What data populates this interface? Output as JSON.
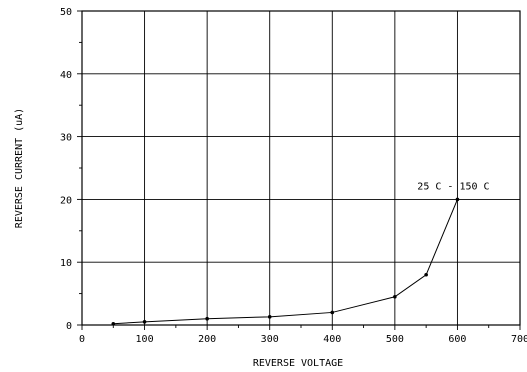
{
  "chart_data": {
    "type": "line",
    "title": "",
    "xlabel": "REVERSE VOLTAGE",
    "ylabel": "REVERSE CURRENT (uA)",
    "xlim": [
      0,
      700
    ],
    "ylim": [
      0,
      50
    ],
    "x_ticks": [
      0,
      100,
      200,
      300,
      400,
      500,
      600,
      700
    ],
    "y_ticks": [
      0,
      10,
      20,
      30,
      40,
      50
    ],
    "grid": true,
    "series": [
      {
        "name": "",
        "x": [
          50,
          100,
          200,
          300,
          400,
          500,
          550,
          600
        ],
        "y": [
          0.2,
          0.5,
          1.0,
          1.3,
          2.0,
          4.5,
          8.0,
          20.0
        ]
      }
    ],
    "annotations": [
      {
        "text": "25 C - 150 C",
        "x": 600,
        "y": 20
      }
    ]
  }
}
